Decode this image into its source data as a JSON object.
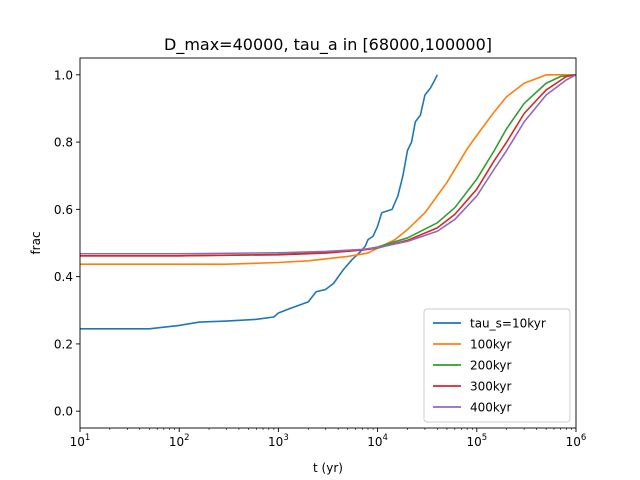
{
  "chart_data": {
    "type": "line",
    "title": "D_max=40000, tau_a in [68000,100000]",
    "xlabel": "t (yr)",
    "ylabel": "frac",
    "xscale": "log",
    "xlim": [
      10,
      1000000
    ],
    "ylim": [
      -0.05,
      1.05
    ],
    "x_ticks": [
      {
        "value": 10,
        "base": "10",
        "exp": "1"
      },
      {
        "value": 100,
        "base": "10",
        "exp": "2"
      },
      {
        "value": 1000,
        "base": "10",
        "exp": "3"
      },
      {
        "value": 10000,
        "base": "10",
        "exp": "4"
      },
      {
        "value": 100000,
        "base": "10",
        "exp": "5"
      },
      {
        "value": 1000000,
        "base": "10",
        "exp": "6"
      }
    ],
    "y_ticks": [
      {
        "value": 0.0,
        "label": "0.0"
      },
      {
        "value": 0.2,
        "label": "0.2"
      },
      {
        "value": 0.4,
        "label": "0.4"
      },
      {
        "value": 0.6,
        "label": "0.6"
      },
      {
        "value": 0.8,
        "label": "0.8"
      },
      {
        "value": 1.0,
        "label": "1.0"
      }
    ],
    "grid": false,
    "legend_position": "lower-right",
    "series": [
      {
        "name": "tau_s=10kyr",
        "color": "#1f77b4",
        "points": [
          [
            10,
            0.245
          ],
          [
            50,
            0.245
          ],
          [
            100,
            0.255
          ],
          [
            160,
            0.265
          ],
          [
            300,
            0.268
          ],
          [
            600,
            0.273
          ],
          [
            900,
            0.28
          ],
          [
            1000,
            0.292
          ],
          [
            1300,
            0.305
          ],
          [
            2000,
            0.325
          ],
          [
            2400,
            0.355
          ],
          [
            3000,
            0.362
          ],
          [
            3600,
            0.38
          ],
          [
            4500,
            0.42
          ],
          [
            5500,
            0.45
          ],
          [
            6500,
            0.47
          ],
          [
            7500,
            0.49
          ],
          [
            8000,
            0.51
          ],
          [
            9000,
            0.52
          ],
          [
            10000,
            0.55
          ],
          [
            11000,
            0.59
          ],
          [
            14000,
            0.6
          ],
          [
            16000,
            0.64
          ],
          [
            18000,
            0.7
          ],
          [
            20000,
            0.775
          ],
          [
            22000,
            0.8
          ],
          [
            24000,
            0.86
          ],
          [
            27000,
            0.88
          ],
          [
            30000,
            0.94
          ],
          [
            34000,
            0.96
          ],
          [
            37000,
            0.98
          ],
          [
            40000,
            1.0
          ]
        ]
      },
      {
        "name": "100kyr",
        "color": "#ff7f0e",
        "points": [
          [
            10,
            0.437
          ],
          [
            100,
            0.437
          ],
          [
            300,
            0.437
          ],
          [
            1000,
            0.442
          ],
          [
            2000,
            0.447
          ],
          [
            5000,
            0.46
          ],
          [
            8000,
            0.47
          ],
          [
            10000,
            0.485
          ],
          [
            15000,
            0.51
          ],
          [
            20000,
            0.54
          ],
          [
            30000,
            0.59
          ],
          [
            50000,
            0.68
          ],
          [
            80000,
            0.78
          ],
          [
            100000,
            0.82
          ],
          [
            150000,
            0.89
          ],
          [
            200000,
            0.935
          ],
          [
            300000,
            0.975
          ],
          [
            500000,
            1.0
          ],
          [
            1000000,
            1.0
          ]
        ]
      },
      {
        "name": "200kyr",
        "color": "#2ca02c",
        "points": [
          [
            10,
            0.462
          ],
          [
            100,
            0.462
          ],
          [
            1000,
            0.466
          ],
          [
            3000,
            0.472
          ],
          [
            7000,
            0.48
          ],
          [
            10000,
            0.488
          ],
          [
            20000,
            0.515
          ],
          [
            40000,
            0.56
          ],
          [
            60000,
            0.605
          ],
          [
            100000,
            0.69
          ],
          [
            150000,
            0.775
          ],
          [
            200000,
            0.84
          ],
          [
            300000,
            0.915
          ],
          [
            500000,
            0.975
          ],
          [
            700000,
            0.995
          ],
          [
            1000000,
            1.0
          ]
        ]
      },
      {
        "name": "300kyr",
        "color": "#d62728",
        "points": [
          [
            10,
            0.462
          ],
          [
            100,
            0.462
          ],
          [
            1000,
            0.465
          ],
          [
            3000,
            0.47
          ],
          [
            7000,
            0.479
          ],
          [
            10000,
            0.485
          ],
          [
            20000,
            0.508
          ],
          [
            40000,
            0.545
          ],
          [
            60000,
            0.585
          ],
          [
            100000,
            0.66
          ],
          [
            150000,
            0.745
          ],
          [
            200000,
            0.8
          ],
          [
            300000,
            0.885
          ],
          [
            500000,
            0.955
          ],
          [
            800000,
            0.995
          ],
          [
            1000000,
            1.0
          ]
        ]
      },
      {
        "name": "400kyr",
        "color": "#9467bd",
        "points": [
          [
            10,
            0.468
          ],
          [
            100,
            0.468
          ],
          [
            1000,
            0.471
          ],
          [
            3000,
            0.475
          ],
          [
            7000,
            0.481
          ],
          [
            10000,
            0.486
          ],
          [
            20000,
            0.505
          ],
          [
            40000,
            0.535
          ],
          [
            60000,
            0.57
          ],
          [
            100000,
            0.64
          ],
          [
            150000,
            0.72
          ],
          [
            200000,
            0.775
          ],
          [
            300000,
            0.86
          ],
          [
            500000,
            0.94
          ],
          [
            800000,
            0.985
          ],
          [
            1000000,
            1.0
          ]
        ]
      }
    ]
  }
}
